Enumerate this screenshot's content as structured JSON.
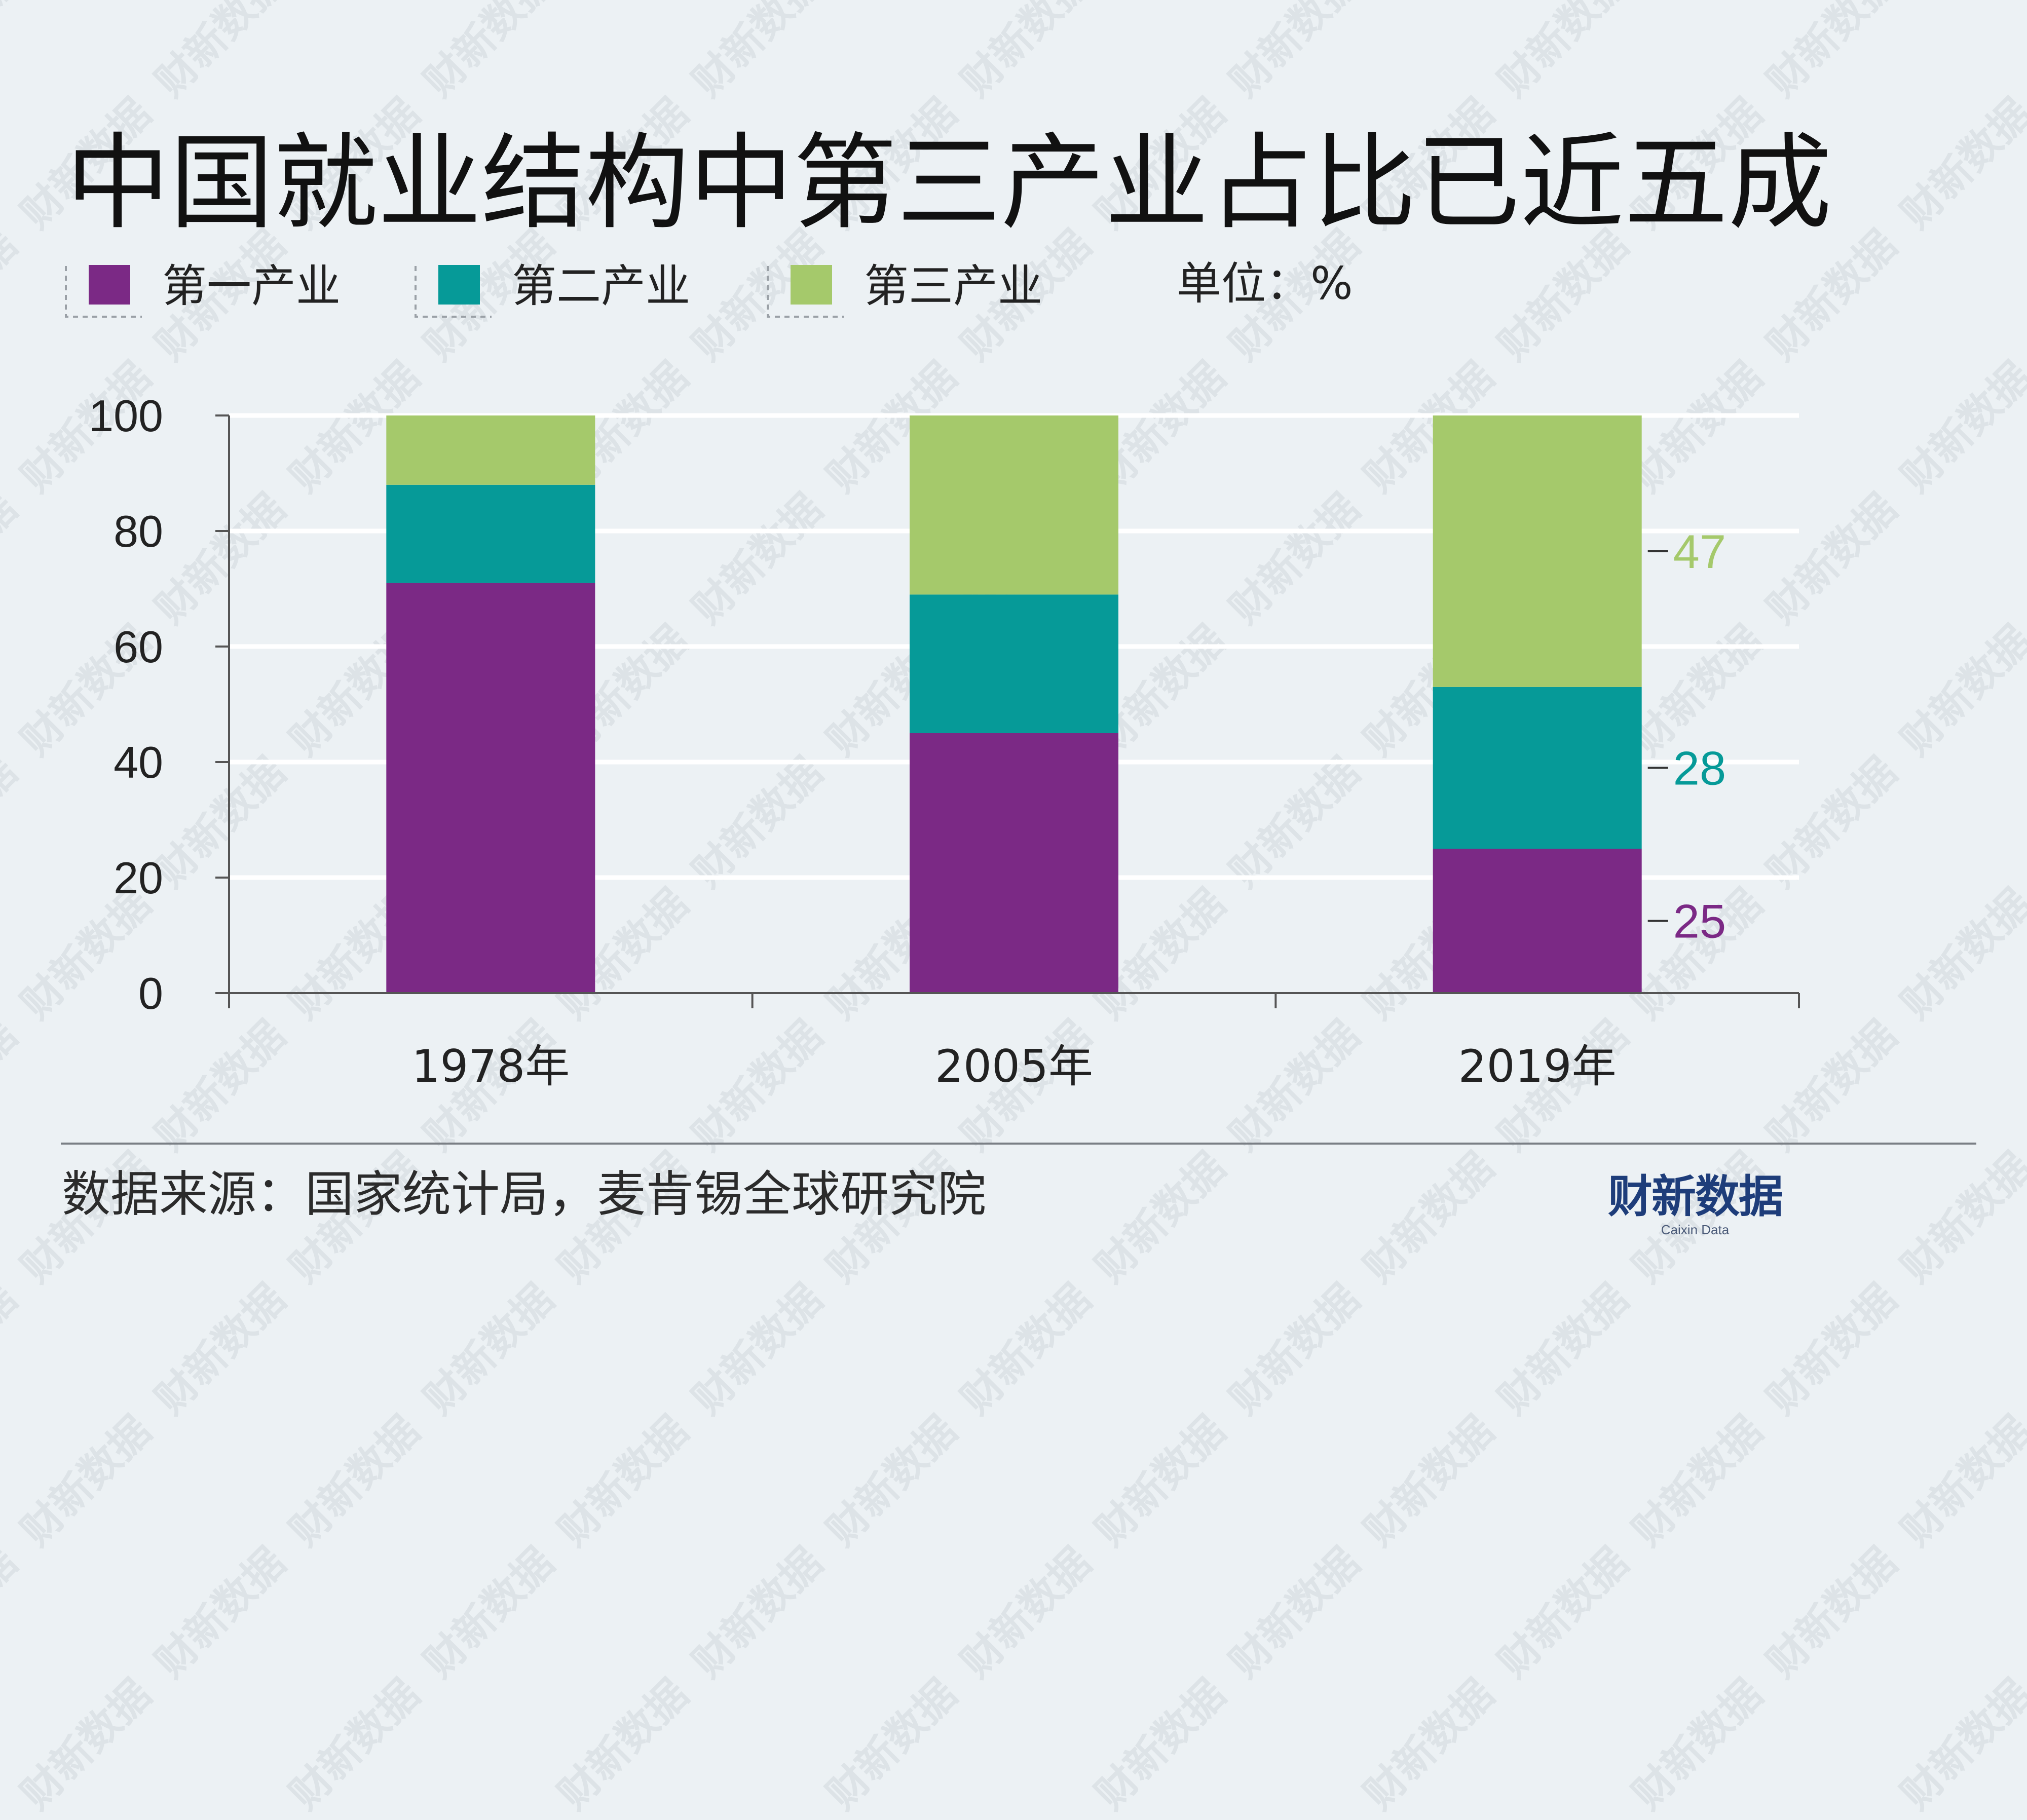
{
  "chart_data": {
    "type": "bar",
    "stacked": true,
    "title": "中国就业结构中第三产业占比已近五成",
    "unit_label": "单位：%",
    "categories": [
      "1978年",
      "2005年",
      "2019年"
    ],
    "series": [
      {
        "name": "第一产业",
        "color": "#7b2985",
        "values": [
          71,
          45,
          25
        ]
      },
      {
        "name": "第二产业",
        "color": "#069a98",
        "values": [
          17,
          24,
          28
        ]
      },
      {
        "name": "第三产业",
        "color": "#a5c96b",
        "values": [
          12,
          31,
          47
        ]
      }
    ],
    "ylim": [
      0,
      100
    ],
    "yticks": [
      "0",
      "20",
      "40",
      "60",
      "80",
      "100"
    ],
    "grid": true,
    "legend_position": "top-left",
    "annotations": [
      {
        "category": "2019年",
        "series": "第三产业",
        "text": "47"
      },
      {
        "category": "2019年",
        "series": "第二产业",
        "text": "28"
      },
      {
        "category": "2019年",
        "series": "第一产业",
        "text": "25"
      }
    ]
  },
  "source": "数据来源：国家统计局，麦肯锡全球研究院",
  "brand": {
    "name": "财新数据",
    "sub": "Caixin Data"
  },
  "watermark_text": "财新数据"
}
